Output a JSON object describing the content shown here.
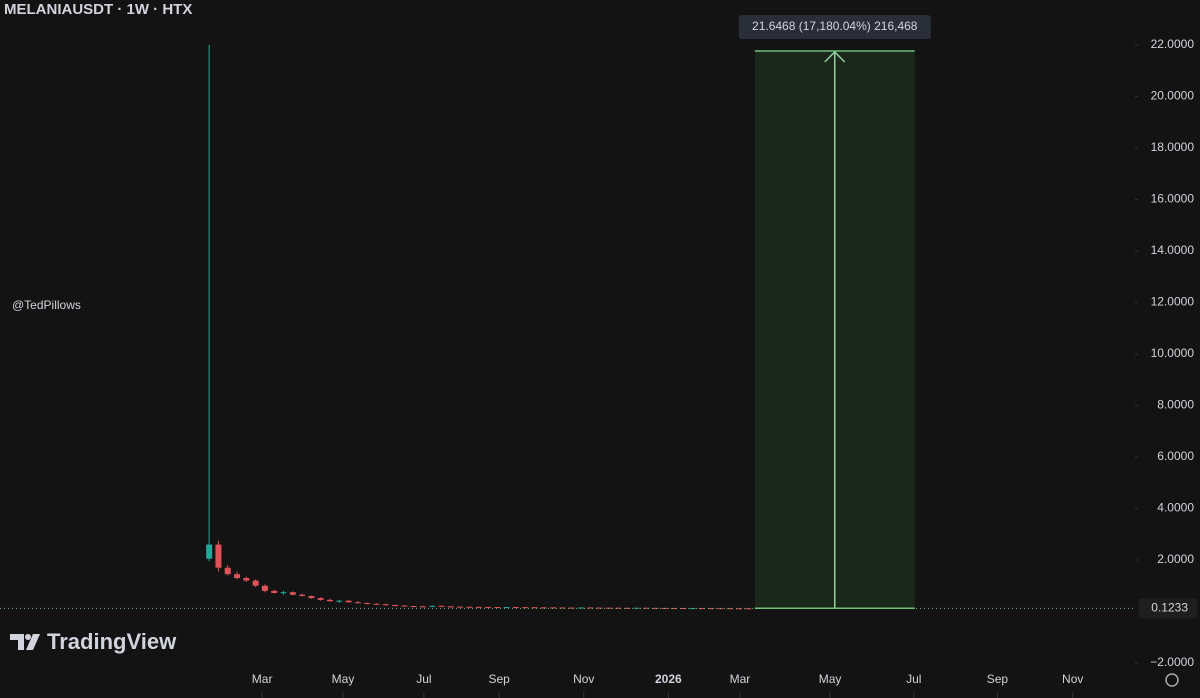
{
  "chart_data": {
    "type": "candlestick",
    "title": "MELANIAUSDT · 1W · HTX",
    "watermark": "@TedPillows",
    "brand": "TradingView",
    "up_color": "#26a69a",
    "down_color": "#e0525a",
    "open": [
      2.05,
      2.6,
      1.7,
      1.45,
      1.3,
      1.2,
      1.0,
      0.8,
      0.72,
      0.75,
      0.65,
      0.6,
      0.52,
      0.45,
      0.4,
      0.42,
      0.36,
      0.33,
      0.3,
      0.28,
      0.25,
      0.23,
      0.21,
      0.2,
      0.19,
      0.22,
      0.2,
      0.19,
      0.185,
      0.18,
      0.178,
      0.175,
      0.17,
      0.172,
      0.168,
      0.165,
      0.16,
      0.158,
      0.155,
      0.152,
      0.15,
      0.155,
      0.15,
      0.148,
      0.145,
      0.142,
      0.14,
      0.145,
      0.14,
      0.138,
      0.135,
      0.133,
      0.13,
      0.132,
      0.13,
      0.128,
      0.126,
      0.125,
      0.124
    ],
    "high": [
      22.0,
      2.75,
      1.8,
      1.55,
      1.35,
      1.25,
      1.05,
      0.85,
      0.8,
      0.78,
      0.7,
      0.62,
      0.55,
      0.5,
      0.45,
      0.44,
      0.4,
      0.35,
      0.32,
      0.3,
      0.27,
      0.25,
      0.23,
      0.22,
      0.24,
      0.24,
      0.21,
      0.2,
      0.19,
      0.185,
      0.18,
      0.178,
      0.175,
      0.18,
      0.175,
      0.17,
      0.165,
      0.16,
      0.158,
      0.155,
      0.16,
      0.16,
      0.155,
      0.15,
      0.148,
      0.145,
      0.15,
      0.15,
      0.145,
      0.14,
      0.138,
      0.135,
      0.135,
      0.135,
      0.132,
      0.13,
      0.128,
      0.127,
      0.126
    ],
    "low": [
      1.95,
      1.55,
      1.4,
      1.25,
      1.15,
      0.95,
      0.75,
      0.7,
      0.65,
      0.62,
      0.58,
      0.5,
      0.42,
      0.38,
      0.33,
      0.34,
      0.32,
      0.28,
      0.26,
      0.24,
      0.22,
      0.2,
      0.19,
      0.18,
      0.18,
      0.19,
      0.18,
      0.175,
      0.17,
      0.168,
      0.165,
      0.16,
      0.165,
      0.158,
      0.155,
      0.15,
      0.148,
      0.145,
      0.142,
      0.14,
      0.145,
      0.14,
      0.138,
      0.135,
      0.132,
      0.13,
      0.135,
      0.13,
      0.128,
      0.125,
      0.123,
      0.12,
      0.125,
      0.12,
      0.118,
      0.116,
      0.115,
      0.114,
      0.113
    ],
    "close": [
      2.6,
      1.7,
      1.45,
      1.3,
      1.2,
      1.0,
      0.8,
      0.72,
      0.75,
      0.65,
      0.6,
      0.52,
      0.45,
      0.4,
      0.42,
      0.36,
      0.33,
      0.3,
      0.28,
      0.25,
      0.23,
      0.21,
      0.2,
      0.19,
      0.22,
      0.2,
      0.19,
      0.185,
      0.18,
      0.178,
      0.175,
      0.17,
      0.172,
      0.168,
      0.165,
      0.16,
      0.158,
      0.155,
      0.152,
      0.15,
      0.155,
      0.15,
      0.148,
      0.145,
      0.142,
      0.14,
      0.145,
      0.14,
      0.138,
      0.135,
      0.133,
      0.13,
      0.132,
      0.13,
      0.128,
      0.126,
      0.125,
      0.124,
      0.1233
    ],
    "xlim": [
      -22.5,
      99.6
    ],
    "xticks": [
      {
        "value": 5.7,
        "label": "Mar"
      },
      {
        "value": 14.4,
        "label": "May"
      },
      {
        "value": 23.1,
        "label": "Jul"
      },
      {
        "value": 31.2,
        "label": "Sep"
      },
      {
        "value": 40.3,
        "label": "Nov"
      },
      {
        "value": 49.4,
        "label": "2026"
      },
      {
        "value": 57.1,
        "label": "Mar"
      },
      {
        "value": 66.8,
        "label": "May"
      },
      {
        "value": 75.8,
        "label": "Jul"
      },
      {
        "value": 84.8,
        "label": "Sep"
      },
      {
        "value": 92.9,
        "label": "Nov"
      }
    ],
    "ylim": [
      -3.36,
      23.75
    ],
    "yticks": [
      {
        "value": 22,
        "label": "22.0000"
      },
      {
        "value": 20,
        "label": "20.0000"
      },
      {
        "value": 18,
        "label": "18.0000"
      },
      {
        "value": 16,
        "label": "16.0000"
      },
      {
        "value": 14,
        "label": "14.0000"
      },
      {
        "value": 12,
        "label": "12.0000"
      },
      {
        "value": 10,
        "label": "10.0000"
      },
      {
        "value": 8,
        "label": "8.0000"
      },
      {
        "value": 6,
        "label": "6.0000"
      },
      {
        "value": 4,
        "label": "4.0000"
      },
      {
        "value": 2,
        "label": "2.0000"
      },
      {
        "value": -2,
        "label": "−2.0000"
      }
    ],
    "last_price": {
      "value": 0.1233,
      "label": "0.1233"
    },
    "measure": {
      "start": 58.7,
      "end": 75.9,
      "low": 0.126,
      "high": 21.77,
      "label": "21.6468 (17,180.04%) 216,468"
    }
  }
}
